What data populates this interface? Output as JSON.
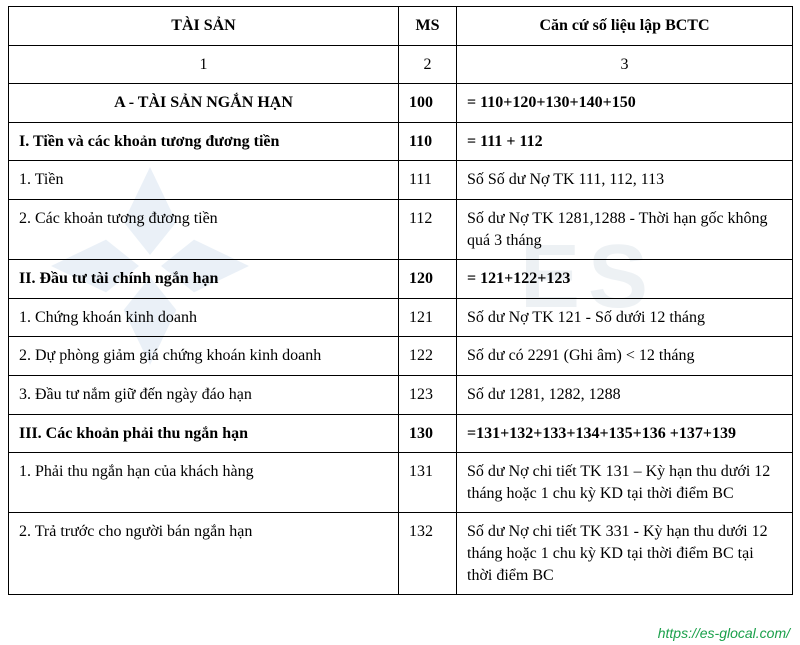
{
  "header": {
    "col1": "TÀI SẢN",
    "col2": "MS",
    "col3": "Căn cứ số liệu lập BCTC"
  },
  "num_row": {
    "c1": "1",
    "c2": "2",
    "c3": "3"
  },
  "rows": [
    {
      "c1": "A - TÀI SẢN NGẮN HẠN",
      "c2": "100",
      "c3": "= 110+120+130+140+150",
      "bold": true,
      "center1": true
    },
    {
      "c1": "I. Tiền và các khoản tương đương tiền",
      "c2": "110",
      "c3": "= 111 + 112",
      "bold": true
    },
    {
      "c1": "1. Tiền",
      "c2": "111",
      "c3": "Số Số dư Nợ TK 111, 112, 113"
    },
    {
      "c1": "2. Các khoản tương đương tiền",
      "c2": "112",
      "c3": "Số dư Nợ TK 1281,1288 - Thời hạn gốc không quá 3 tháng"
    },
    {
      "c1": "II. Đầu tư tài chính ngắn hạn",
      "c2": "120",
      "c3": "= 121+122+123",
      "bold": true
    },
    {
      "c1": "1. Chứng khoán kinh doanh",
      "c2": "121",
      "c3": "Số dư Nợ TK 121 - Số dưới 12 tháng"
    },
    {
      "c1": "2. Dự phòng giảm giá chứng khoán kinh doanh",
      "c2": "122",
      "c3": "Số dư có 2291 (Ghi âm) < 12 tháng"
    },
    {
      "c1": "3. Đầu tư nắm giữ đến ngày đáo hạn",
      "c2": "123",
      "c3": "Số dư 1281, 1282, 1288"
    },
    {
      "c1": "III. Các khoản phải thu ngắn hạn",
      "c2": "130",
      "c3": "=131+132+133+134+135+136 +137+139",
      "bold": true
    },
    {
      "c1": "1. Phải thu ngắn hạn của khách hàng",
      "c2": "131",
      "c3": "Số dư Nợ chi tiết TK 131 – Kỳ hạn thu dưới 12 tháng hoặc 1 chu kỳ KD tại thời điểm BC"
    },
    {
      "c1": "2. Trả trước cho người bán ngắn hạn",
      "c2": "132",
      "c3": "Số dư Nợ chi tiết TK 331 - Kỳ hạn thu dưới 12 tháng hoặc 1 chu kỳ KD tại thời điểm BC tại thời điểm BC"
    }
  ],
  "footer_url": "https://es-glocal.com/",
  "watermark": {
    "logo_color": "#3a77b6",
    "text_color": "#9fb4c7",
    "text": "ES"
  }
}
